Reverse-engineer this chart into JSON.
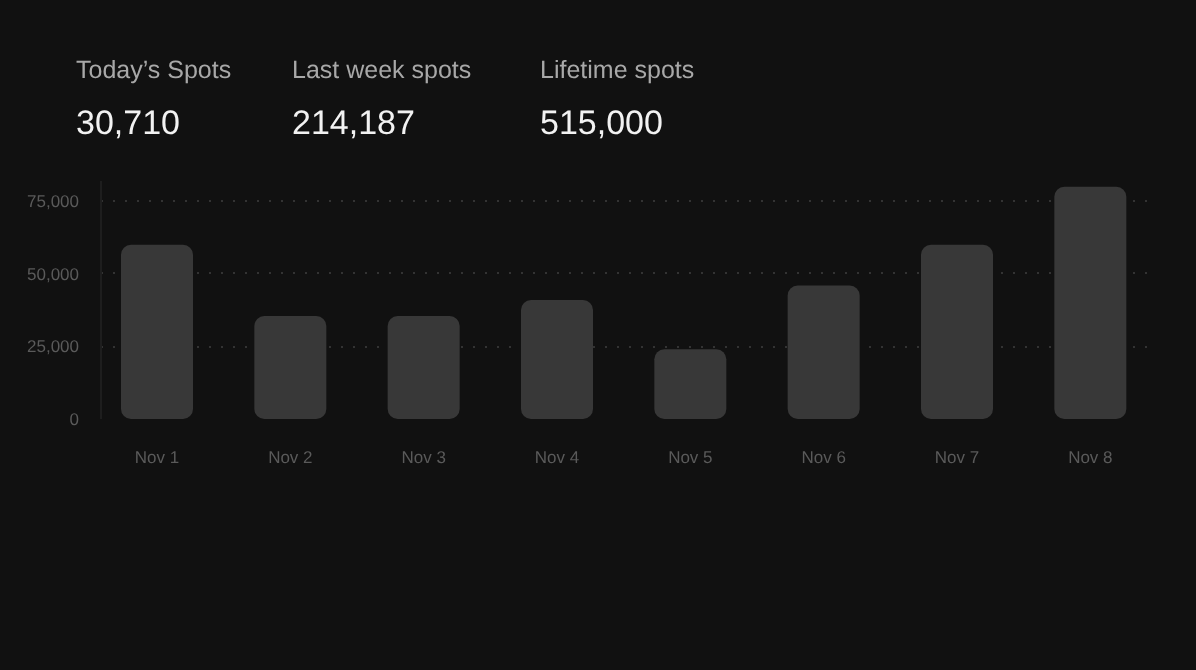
{
  "chart_data": {
    "type": "bar",
    "annotations": [
      "Today’s Spots",
      "30,710",
      "Last week spots",
      "214,187",
      "Lifetime spots",
      "515,000"
    ],
    "categories": [
      "Nov 1",
      "Nov 2",
      "Nov 3",
      "Nov 4",
      "Nov 5",
      "Nov 6",
      "Nov 7",
      "Nov 8"
    ],
    "values": [
      60000,
      35500,
      35500,
      41000,
      24000,
      46000,
      60000,
      80000
    ],
    "color": "#383838",
    "ylim": [
      0,
      82000
    ],
    "yticks": [
      0,
      {
        "value": 25000,
        "label": "25,000"
      },
      {
        "value": 50000,
        "label": "50,000"
      },
      {
        "value": 75000,
        "label": "75,000"
      }
    ],
    "grid": "y"
  }
}
